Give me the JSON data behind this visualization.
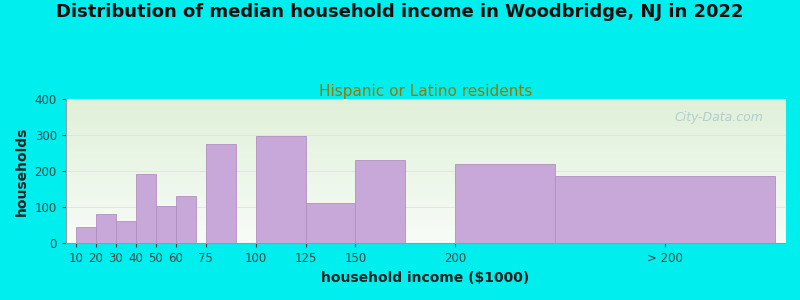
{
  "title": "Distribution of median household income in Woodbridge, NJ in 2022",
  "subtitle": "Hispanic or Latino residents",
  "xlabel": "household income ($1000)",
  "ylabel": "households",
  "background_color": "#00EEEE",
  "plot_bg_gradient_top": "#dff0d8",
  "plot_bg_gradient_bottom": "#f8fcf8",
  "bar_color": "#C8A8D8",
  "bar_edge_color": "#b090c0",
  "watermark": "City-Data.com",
  "values": [
    45,
    82,
    62,
    192,
    103,
    130,
    275,
    298,
    113,
    232,
    220,
    188
  ],
  "bar_lefts": [
    10,
    20,
    30,
    40,
    50,
    60,
    75,
    100,
    125,
    150,
    200,
    250
  ],
  "bar_widths": [
    10,
    10,
    10,
    10,
    10,
    10,
    15,
    25,
    25,
    25,
    50,
    110
  ],
  "xtick_labels": [
    "10",
    "20",
    "30",
    "40",
    "50",
    "60",
    "75",
    "100",
    "125",
    "150",
    "200",
    "> 200"
  ],
  "xtick_positions": [
    10,
    20,
    30,
    40,
    50,
    60,
    75,
    100,
    125,
    150,
    200,
    305
  ],
  "xlim_left": 5,
  "xlim_right": 365,
  "ylim": [
    0,
    400
  ],
  "yticks": [
    0,
    100,
    200,
    300,
    400
  ],
  "title_fontsize": 13,
  "subtitle_fontsize": 11,
  "subtitle_color": "#7a6e00",
  "label_fontsize": 10,
  "tick_fontsize": 8.5
}
